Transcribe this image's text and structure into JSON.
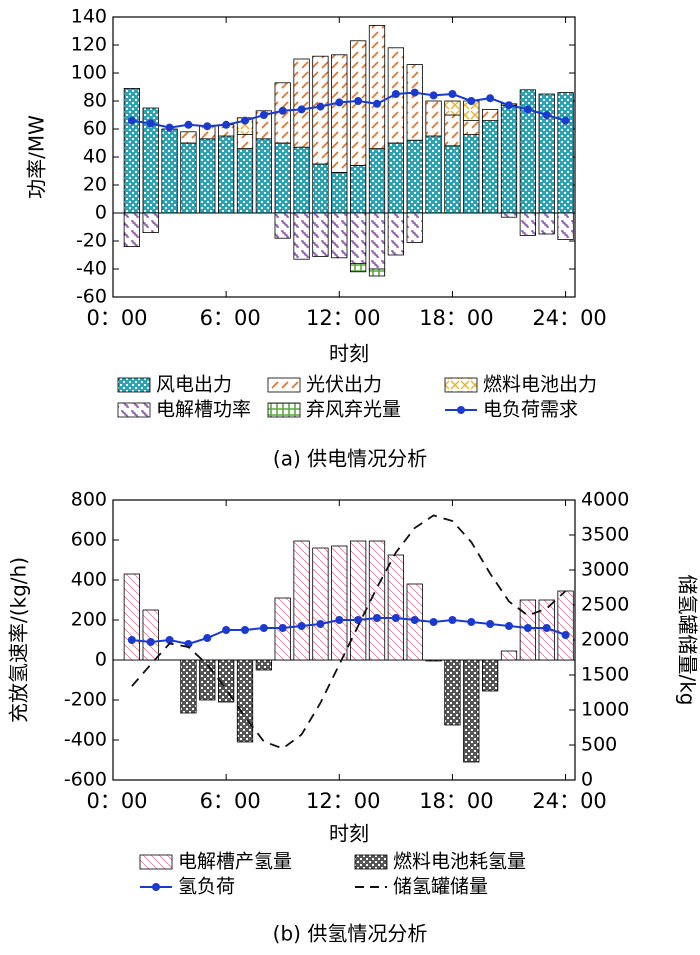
{
  "chart_data": [
    {
      "type": "bar",
      "caption": "(a) 供电情况分析",
      "xlabel": "时刻",
      "ylabel": "功率/MW",
      "x": [
        1,
        2,
        3,
        4,
        5,
        6,
        7,
        8,
        9,
        10,
        11,
        12,
        13,
        14,
        15,
        16,
        17,
        18,
        19,
        20,
        21,
        22,
        23,
        24
      ],
      "xlim": [
        0,
        24.5
      ],
      "xticks": [
        {
          "value": 0,
          "label": "0：00"
        },
        {
          "value": 6,
          "label": "6：00"
        },
        {
          "value": 12,
          "label": "12：00"
        },
        {
          "value": 18,
          "label": "18：00"
        },
        {
          "value": 24,
          "label": "24：00"
        }
      ],
      "ylim": [
        -60,
        140
      ],
      "yticks": [
        -60,
        -40,
        -20,
        0,
        20,
        40,
        60,
        80,
        100,
        120,
        140
      ],
      "series": [
        {
          "name": "风电出力",
          "kind": "bar",
          "pattern": "checker",
          "color": "#2aa3b5",
          "values": [
            89,
            75,
            60,
            50,
            53,
            55,
            46,
            53,
            50,
            47,
            35,
            29,
            34,
            46,
            50,
            52,
            55,
            48,
            56,
            66,
            77,
            88,
            85,
            86
          ]
        },
        {
          "name": "光伏出力",
          "kind": "bar",
          "pattern": "diagonal",
          "color": "#e0702a",
          "values": [
            0,
            0,
            0,
            8,
            9,
            8,
            10,
            20,
            43,
            63,
            77,
            84,
            89,
            88,
            68,
            54,
            25,
            22,
            10,
            8,
            1,
            0,
            0,
            0
          ]
        },
        {
          "name": "燃料电池出力",
          "kind": "bar",
          "pattern": "cross",
          "color": "#e8b42a",
          "values": [
            0,
            0,
            0,
            0,
            0,
            0,
            12,
            0,
            0,
            0,
            0,
            0,
            0,
            0,
            0,
            0,
            0,
            10,
            14,
            0,
            0,
            0,
            0,
            0
          ]
        },
        {
          "name": "电解槽功率",
          "kind": "bar",
          "pattern": "steps",
          "color": "#7a3a9e",
          "values": [
            -24,
            -14,
            0,
            0,
            0,
            0,
            0,
            0,
            -18,
            -33,
            -31,
            -32,
            -36,
            -40,
            -30,
            -21,
            0,
            0,
            0,
            0,
            -3,
            -16,
            -15,
            -19
          ]
        },
        {
          "name": "弃风弃光量",
          "kind": "bar",
          "pattern": "grid",
          "color": "#5aaa3a",
          "values": [
            0,
            0,
            0,
            0,
            0,
            0,
            0,
            0,
            0,
            0,
            0,
            0,
            -6,
            -5,
            0,
            0,
            0,
            0,
            0,
            0,
            0,
            0,
            0,
            0
          ]
        },
        {
          "name": "电负荷需求",
          "kind": "line",
          "color": "#1a3ad0",
          "values": [
            66,
            64,
            61,
            63,
            62,
            63,
            66,
            70,
            73,
            74,
            76,
            79,
            80,
            78,
            85,
            86,
            84,
            85,
            80,
            82,
            77,
            74,
            70,
            66
          ]
        }
      ]
    },
    {
      "type": "bar",
      "caption": "(b) 供氢情况分析",
      "xlabel": "时刻",
      "ylabel": "充放氢速率/(kg/h)",
      "y2label": "储氢罐储量/kg",
      "x": [
        1,
        2,
        3,
        4,
        5,
        6,
        7,
        8,
        9,
        10,
        11,
        12,
        13,
        14,
        15,
        16,
        17,
        18,
        19,
        20,
        21,
        22,
        23,
        24
      ],
      "xlim": [
        0,
        24.5
      ],
      "xticks": [
        {
          "value": 0,
          "label": "0：00"
        },
        {
          "value": 6,
          "label": "6：00"
        },
        {
          "value": 12,
          "label": "12：00"
        },
        {
          "value": 18,
          "label": "18：00"
        },
        {
          "value": 24,
          "label": "24：00"
        }
      ],
      "ylim": [
        -600,
        800
      ],
      "yticks": [
        -600,
        -400,
        -200,
        0,
        200,
        400,
        600,
        800
      ],
      "y2lim": [
        0,
        4000
      ],
      "y2ticks": [
        0,
        500,
        1000,
        1500,
        2000,
        2500,
        3000,
        3500,
        4000
      ],
      "series": [
        {
          "name": "电解槽产氢量",
          "kind": "bar",
          "pattern": "thin",
          "color": "#e07a9a",
          "values": [
            430,
            250,
            0,
            0,
            0,
            0,
            0,
            0,
            310,
            595,
            560,
            570,
            595,
            595,
            525,
            380,
            0,
            0,
            0,
            0,
            45,
            300,
            300,
            345
          ]
        },
        {
          "name": "燃料电池耗氢量",
          "kind": "bar",
          "pattern": "dark",
          "color": "#555555",
          "values": [
            0,
            0,
            0,
            -265,
            -200,
            -210,
            -410,
            -50,
            0,
            0,
            0,
            0,
            0,
            0,
            0,
            0,
            -5,
            -325,
            -510,
            -155,
            0,
            0,
            0,
            0
          ]
        },
        {
          "name": "氢负荷",
          "kind": "line",
          "color": "#1a3ad0",
          "values": [
            100,
            90,
            100,
            80,
            110,
            150,
            150,
            160,
            160,
            170,
            180,
            200,
            200,
            210,
            210,
            200,
            190,
            200,
            190,
            180,
            170,
            160,
            160,
            125
          ]
        },
        {
          "name": "储氢罐储量",
          "kind": "line",
          "dashed": true,
          "axis": "y2",
          "color": "#111111",
          "values": [
            1340,
            1650,
            1950,
            1900,
            1650,
            1300,
            900,
            550,
            450,
            650,
            1100,
            1650,
            2200,
            2750,
            3250,
            3600,
            3780,
            3700,
            3400,
            2950,
            2550,
            2350,
            2450,
            2700
          ]
        }
      ]
    }
  ]
}
